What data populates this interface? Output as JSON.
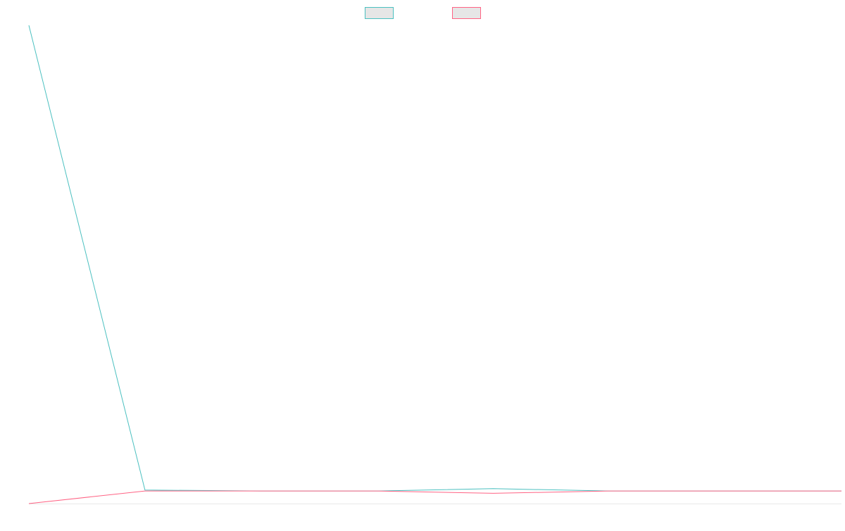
{
  "chart_data": {
    "type": "line",
    "x": [
      0,
      1,
      2,
      3,
      4,
      5,
      6,
      7
    ],
    "series": [
      {
        "color": "#4bc0c0",
        "values": [
          1000,
          2,
          0,
          0,
          5,
          0,
          0,
          0
        ]
      },
      {
        "color": "#ff6384",
        "values": [
          -27,
          0,
          0,
          0,
          -5,
          0,
          0,
          0
        ]
      }
    ],
    "xlim": [
      0,
      7
    ],
    "ylim": [
      -27,
      1000
    ],
    "legend": "top-center",
    "grid": false
  }
}
